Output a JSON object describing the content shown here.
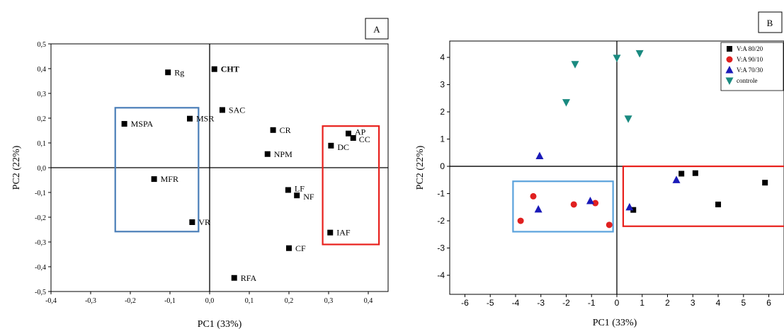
{
  "chart_data": [
    {
      "type": "scatter",
      "panel_label": "A",
      "xlabel": "PC1 (33%)",
      "ylabel": "PC2 (22%)",
      "xlim": [
        -0.4,
        0.45
      ],
      "ylim": [
        -0.5,
        0.5
      ],
      "x_ticks": [
        -0.4,
        -0.3,
        -0.2,
        -0.1,
        0.0,
        0.1,
        0.2,
        0.3,
        0.4
      ],
      "x_tick_labels": [
        "-0,4",
        "-0,3",
        "-0,2",
        "-0,1",
        "0,0",
        "0,1",
        "0,2",
        "0,3",
        "0,4"
      ],
      "y_ticks": [
        -0.5,
        -0.4,
        -0.3,
        -0.2,
        -0.1,
        0.0,
        0.1,
        0.2,
        0.3,
        0.4,
        0.5
      ],
      "y_tick_labels": [
        "-0,5",
        "-0,4",
        "-0,3",
        "-0,2",
        "-0,1",
        "0,0",
        "0,1",
        "0,2",
        "0,3",
        "0,4",
        "0,5"
      ],
      "points": [
        {
          "label": "Rg",
          "x": -0.105,
          "y": 0.385
        },
        {
          "label": "CHT",
          "x": 0.012,
          "y": 0.398,
          "bold": true
        },
        {
          "label": "SAC",
          "x": 0.032,
          "y": 0.233
        },
        {
          "label": "MSR",
          "x": -0.05,
          "y": 0.198
        },
        {
          "label": "MSPA",
          "x": -0.215,
          "y": 0.177
        },
        {
          "label": "CR",
          "x": 0.16,
          "y": 0.152
        },
        {
          "label": "AP",
          "x": 0.35,
          "y": 0.138
        },
        {
          "label": "CC",
          "x": 0.362,
          "y": 0.12
        },
        {
          "label": "DC",
          "x": 0.306,
          "y": 0.089
        },
        {
          "label": "NPM",
          "x": 0.146,
          "y": 0.055
        },
        {
          "label": "MFR",
          "x": -0.14,
          "y": -0.046
        },
        {
          "label": "LF",
          "x": 0.198,
          "y": -0.09
        },
        {
          "label": "NF",
          "x": 0.22,
          "y": -0.112
        },
        {
          "label": "VR",
          "x": -0.044,
          "y": -0.22
        },
        {
          "label": "IAF",
          "x": 0.304,
          "y": -0.262
        },
        {
          "label": "CF",
          "x": 0.2,
          "y": -0.325
        },
        {
          "label": "RFA",
          "x": 0.062,
          "y": -0.445
        }
      ],
      "highlight_boxes": [
        {
          "color": "#4a7eb8",
          "x": [
            -0.238,
            -0.028
          ],
          "y": [
            -0.258,
            0.242
          ]
        },
        {
          "color": "#e8201c",
          "x": [
            0.285,
            0.427
          ],
          "y": [
            -0.31,
            0.168
          ]
        }
      ]
    },
    {
      "type": "scatter",
      "panel_label": "B",
      "xlabel": "PC1 (33%)",
      "ylabel": "PC2 (22%)",
      "xlim": [
        -6.6,
        6.6
      ],
      "ylim": [
        -4.7,
        4.6
      ],
      "x_ticks": [
        -6,
        -5,
        -4,
        -3,
        -2,
        -1,
        0,
        1,
        2,
        3,
        4,
        5,
        6
      ],
      "x_tick_labels": [
        "-6",
        "-5",
        "-4",
        "-3",
        "-2",
        "-1",
        "0",
        "1",
        "2",
        "3",
        "4",
        "5",
        "6"
      ],
      "y_ticks": [
        -4,
        -3,
        -2,
        -1,
        0,
        1,
        2,
        3,
        4
      ],
      "y_tick_labels": [
        "-4",
        "-3",
        "-2",
        "-1",
        "0",
        "1",
        "2",
        "3",
        "4"
      ],
      "series": [
        {
          "name": "V:A 80/20",
          "marker": "square",
          "color": "#000000",
          "x": [
            2.55,
            3.1,
            5.85,
            4.0,
            0.65
          ],
          "y": [
            -0.27,
            -0.25,
            -0.6,
            -1.4,
            -1.6
          ]
        },
        {
          "name": "V:A 90/10",
          "marker": "circle",
          "color": "#e02020",
          "x": [
            -3.3,
            -3.8,
            -1.7,
            -0.85,
            -0.3
          ],
          "y": [
            -1.1,
            -2.0,
            -1.4,
            -1.35,
            -2.15
          ]
        },
        {
          "name": "V:A 70/30",
          "marker": "triangle-up",
          "color": "#1a1ab8",
          "x": [
            -3.05,
            -3.1,
            -1.05,
            2.35,
            0.5
          ],
          "y": [
            0.38,
            -1.58,
            -1.27,
            -0.5,
            -1.5
          ]
        },
        {
          "name": "controle",
          "marker": "triangle-down",
          "color": "#1a8a80",
          "x": [
            -1.65,
            0.0,
            0.9,
            -2.0,
            0.45
          ],
          "y": [
            3.75,
            3.98,
            4.15,
            2.35,
            1.75
          ]
        }
      ],
      "highlight_boxes": [
        {
          "color": "#5aa2dc",
          "x": [
            -4.1,
            -0.15
          ],
          "y": [
            -2.4,
            -0.55
          ]
        },
        {
          "color": "#e8201c",
          "x": [
            0.25,
            6.65
          ],
          "y": [
            -2.2,
            0.0
          ]
        }
      ]
    }
  ]
}
